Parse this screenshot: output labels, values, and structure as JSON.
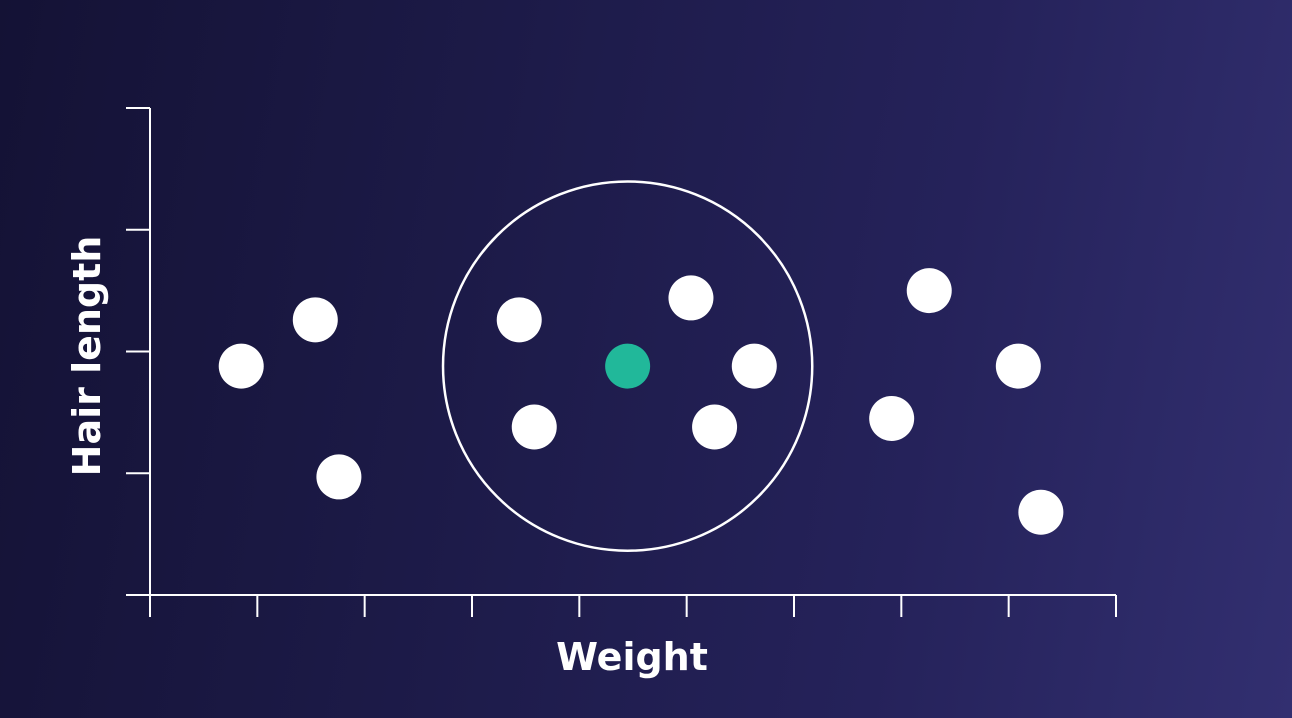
{
  "chart_data": {
    "type": "scatter",
    "title": "",
    "xlabel": "Weight",
    "ylabel": "Hair length",
    "xlim": [
      0,
      9
    ],
    "ylim": [
      0,
      4
    ],
    "x_ticks": [
      0,
      1,
      2,
      3,
      4,
      5,
      6,
      7,
      8,
      9
    ],
    "y_ticks": [
      0,
      1,
      2,
      3,
      4
    ],
    "tick_labels_shown": false,
    "grid": false,
    "legend": "none",
    "series": [
      {
        "color": "#ffffff",
        "points": [
          {
            "x": 0.85,
            "y": 1.88
          },
          {
            "x": 1.54,
            "y": 2.26
          },
          {
            "x": 1.76,
            "y": 0.97
          },
          {
            "x": 3.44,
            "y": 2.26
          },
          {
            "x": 3.58,
            "y": 1.38
          },
          {
            "x": 5.04,
            "y": 2.44
          },
          {
            "x": 5.63,
            "y": 1.88
          },
          {
            "x": 5.26,
            "y": 1.38
          },
          {
            "x": 6.91,
            "y": 1.45
          },
          {
            "x": 7.26,
            "y": 2.5
          },
          {
            "x": 8.09,
            "y": 1.88
          },
          {
            "x": 8.3,
            "y": 0.68
          }
        ]
      },
      {
        "color": "#21b89a",
        "points": [
          {
            "x": 4.45,
            "y": 1.88
          }
        ]
      }
    ],
    "neighborhood": {
      "center": {
        "x": 4.45,
        "y": 1.88
      },
      "radius_x": 1.72,
      "color": "#ffffff"
    },
    "colors": {
      "axis": "#ffffff",
      "point": "#ffffff",
      "query_point": "#21b89a"
    }
  }
}
